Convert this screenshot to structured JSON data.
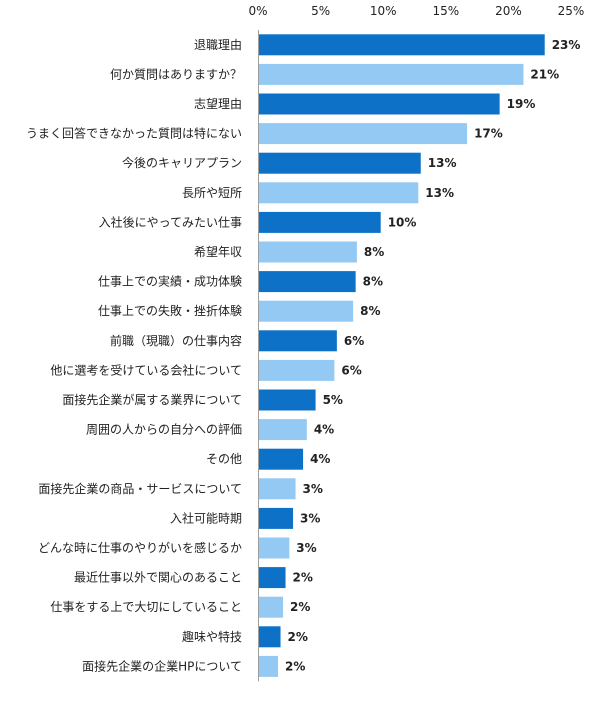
{
  "chart_data": {
    "type": "bar",
    "orientation": "horizontal",
    "title": "",
    "xlabel": "",
    "ylabel": "",
    "xlim": [
      0,
      25
    ],
    "x_ticks": [
      "0%",
      "5%",
      "10%",
      "15%",
      "20%",
      "25%"
    ],
    "x_tick_values": [
      0,
      5,
      10,
      15,
      20,
      25
    ],
    "grid": false,
    "legend": "none",
    "colors": {
      "dark": "#0d72c7",
      "light": "#93c9f3",
      "axis": "#9e9e9e"
    },
    "categories": [
      "退職理由",
      "何か質問はありますか？",
      "志望理由",
      "うまく回答できなかった質問は特にない",
      "今後のキャリアプラン",
      "長所や短所",
      "入社後にやってみたい仕事",
      "希望年収",
      "仕事上での実績・成功体験",
      "仕事上での失敗・挫折体験",
      "前職（現職）の仕事内容",
      "他に選考を受けている会社について",
      "面接先企業が属する業界について",
      "周囲の人からの自分への評価",
      "その他",
      "面接先企業の商品・サービスについて",
      "入社可能時期",
      "どんな時に仕事のやりがいを感じるか",
      "最近仕事以外で関心のあること",
      "仕事をする上で大切にしていること",
      "趣味や特技",
      "面接先企業の企業HPについて"
    ],
    "values": [
      22.9,
      21.2,
      19.3,
      16.7,
      13.0,
      12.8,
      9.8,
      7.9,
      7.8,
      7.6,
      6.3,
      6.1,
      4.6,
      3.9,
      3.6,
      3.0,
      2.8,
      2.5,
      2.2,
      2.0,
      1.8,
      1.6
    ],
    "value_labels": [
      "23%",
      "21%",
      "19%",
      "17%",
      "13%",
      "13%",
      "10%",
      "8%",
      "8%",
      "8%",
      "6%",
      "6%",
      "5%",
      "4%",
      "4%",
      "3%",
      "3%",
      "3%",
      "2%",
      "2%",
      "2%",
      "2%"
    ],
    "bar_colors": [
      "dark",
      "light",
      "dark",
      "light",
      "dark",
      "light",
      "dark",
      "light",
      "dark",
      "light",
      "dark",
      "light",
      "dark",
      "light",
      "dark",
      "light",
      "dark",
      "light",
      "dark",
      "light",
      "dark",
      "light"
    ]
  }
}
